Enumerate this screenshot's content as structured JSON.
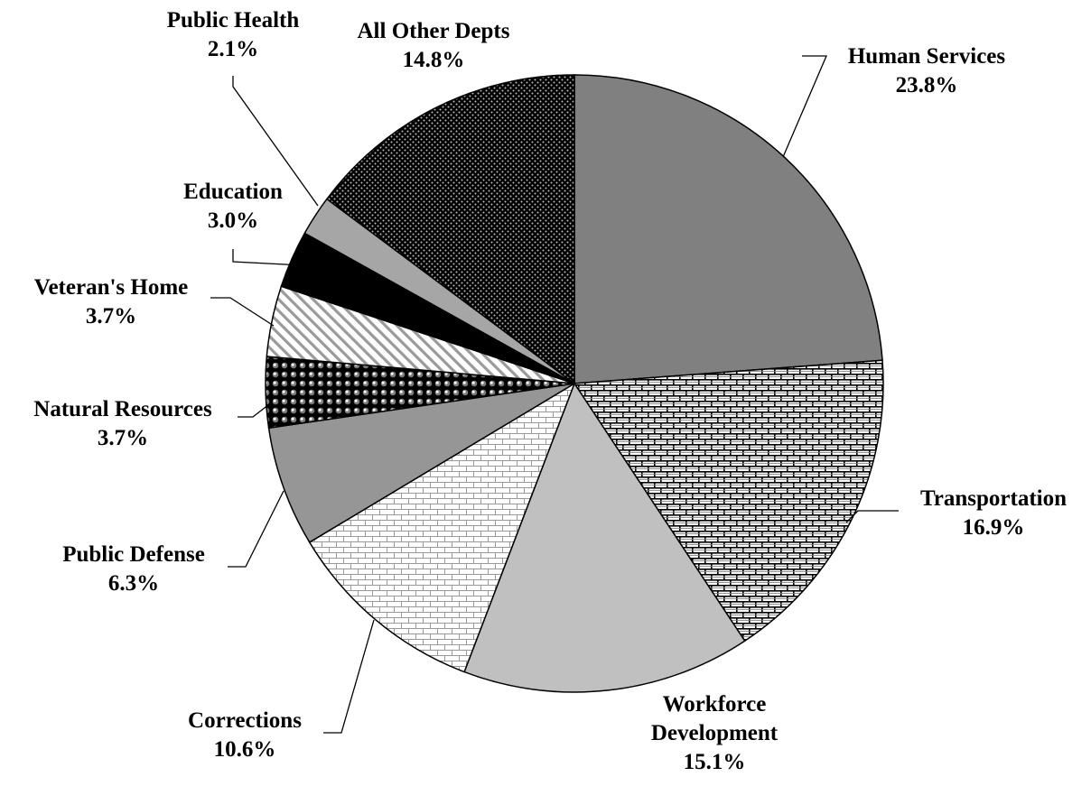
{
  "chart_data": {
    "type": "pie",
    "start": "12 o'clock, clockwise",
    "legend": "none (labels placed beside slices)",
    "slices": [
      {
        "name": "Human Services",
        "label": [
          "Human Services"
        ],
        "value": 23.8,
        "display": "23.8%",
        "pattern": "solid-dark-gray"
      },
      {
        "name": "Transportation",
        "label": [
          "Transportation"
        ],
        "value": 16.9,
        "display": "16.9%",
        "pattern": "brick-dark"
      },
      {
        "name": "Workforce Development",
        "label": [
          "Workforce",
          "Development"
        ],
        "value": 15.1,
        "display": "15.1%",
        "pattern": "solid-light-gray"
      },
      {
        "name": "Corrections",
        "label": [
          "Corrections"
        ],
        "value": 10.6,
        "display": "10.6%",
        "pattern": "brick-light"
      },
      {
        "name": "Public Defense",
        "label": [
          "Public Defense"
        ],
        "value": 6.3,
        "display": "6.3%",
        "pattern": "solid-medium-gray"
      },
      {
        "name": "Natural Resources",
        "label": [
          "Natural Resources"
        ],
        "value": 3.7,
        "display": "3.7%",
        "pattern": "spheres"
      },
      {
        "name": "Veteran's Home",
        "label": [
          "Veteran's Home"
        ],
        "value": 3.7,
        "display": "3.7%",
        "pattern": "diagonal-stripes"
      },
      {
        "name": "Education",
        "label": [
          "Education"
        ],
        "value": 3.0,
        "display": "3.0%",
        "pattern": "solid-black"
      },
      {
        "name": "Public Health",
        "label": [
          "Public Health"
        ],
        "value": 2.1,
        "display": "2.1%",
        "pattern": "solid-gray"
      },
      {
        "name": "All Other Depts",
        "label": [
          "All Other Depts"
        ],
        "value": 14.8,
        "display": "14.8%",
        "pattern": "dots-dark"
      }
    ]
  }
}
